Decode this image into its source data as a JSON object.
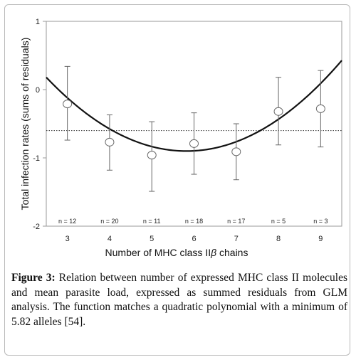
{
  "chart_data": {
    "type": "scatter",
    "ylabel": "Total infection rates (sums of residuals)",
    "xlabel": "Number of MHC class II",
    "xlabel_symbol": "β",
    "xlabel_suffix": "chains",
    "x": [
      3,
      4,
      5,
      6,
      7,
      8,
      9
    ],
    "xticks": [
      "3",
      "4",
      "5",
      "6",
      "7",
      "8",
      "9"
    ],
    "ylim": [
      -2,
      1
    ],
    "yticks": [
      "1",
      "0",
      "-1",
      "-2"
    ],
    "series": [
      {
        "points": [
          {
            "x": 3,
            "y": -0.21,
            "err_low": -0.74,
            "err_high": 0.34
          },
          {
            "x": 4,
            "y": -0.77,
            "err_low": -1.18,
            "err_high": -0.37
          },
          {
            "x": 5,
            "y": -0.96,
            "err_low": -1.49,
            "err_high": -0.47
          },
          {
            "x": 6,
            "y": -0.79,
            "err_low": -1.24,
            "err_high": -0.34
          },
          {
            "x": 7,
            "y": -0.91,
            "err_low": -1.32,
            "err_high": -0.5
          },
          {
            "x": 8,
            "y": -0.32,
            "err_low": -0.81,
            "err_high": 0.18
          },
          {
            "x": 9,
            "y": -0.28,
            "err_low": -0.84,
            "err_high": 0.28
          }
        ]
      }
    ],
    "sample_sizes": [
      "n = 12",
      "n = 20",
      "n = 11",
      "n = 18",
      "n = 17",
      "n = 5",
      "n = 3"
    ],
    "fit": {
      "type": "quadratic",
      "vertex_x": 5.82,
      "vertex_y": -0.9,
      "y_at_2_5": 0.18
    },
    "reference_line_y": -0.6,
    "grid": false
  },
  "caption": {
    "label": "Figure 3:",
    "text": " Relation between number of expressed MHC class II molecules and mean parasite load, expressed as summed residuals from GLM analysis. The function matches a quadratic polynomial with a minimum of 5.82 alleles [54]."
  }
}
